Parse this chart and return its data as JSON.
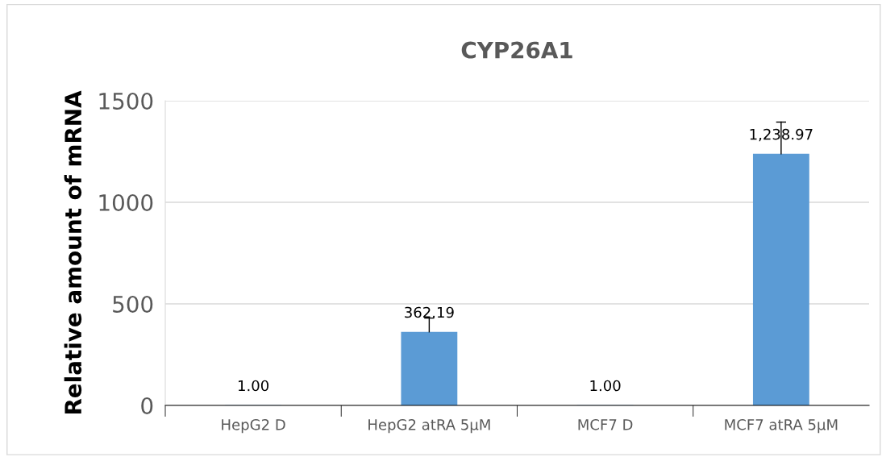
{
  "chart_data": {
    "type": "bar",
    "title": "CYP26A1",
    "ylabel": "Relative amount of mRNA",
    "categories": [
      "HepG2 D",
      "HepG2 atRA 5µM",
      "MCF7 D",
      "MCF7 atRA 5µM"
    ],
    "values": [
      1.0,
      362.19,
      1.0,
      1238.97
    ],
    "value_labels": [
      "1.00",
      "362.19",
      "1.00",
      "1,238.97"
    ],
    "errors": [
      null,
      [
        362.19,
        430
      ],
      null,
      [
        1238.97,
        1395
      ]
    ],
    "color": "#5b9bd5",
    "ylim": [
      0,
      1500
    ],
    "yticks": [
      0,
      500,
      1000,
      1500
    ],
    "grid": "y",
    "legend": false
  }
}
